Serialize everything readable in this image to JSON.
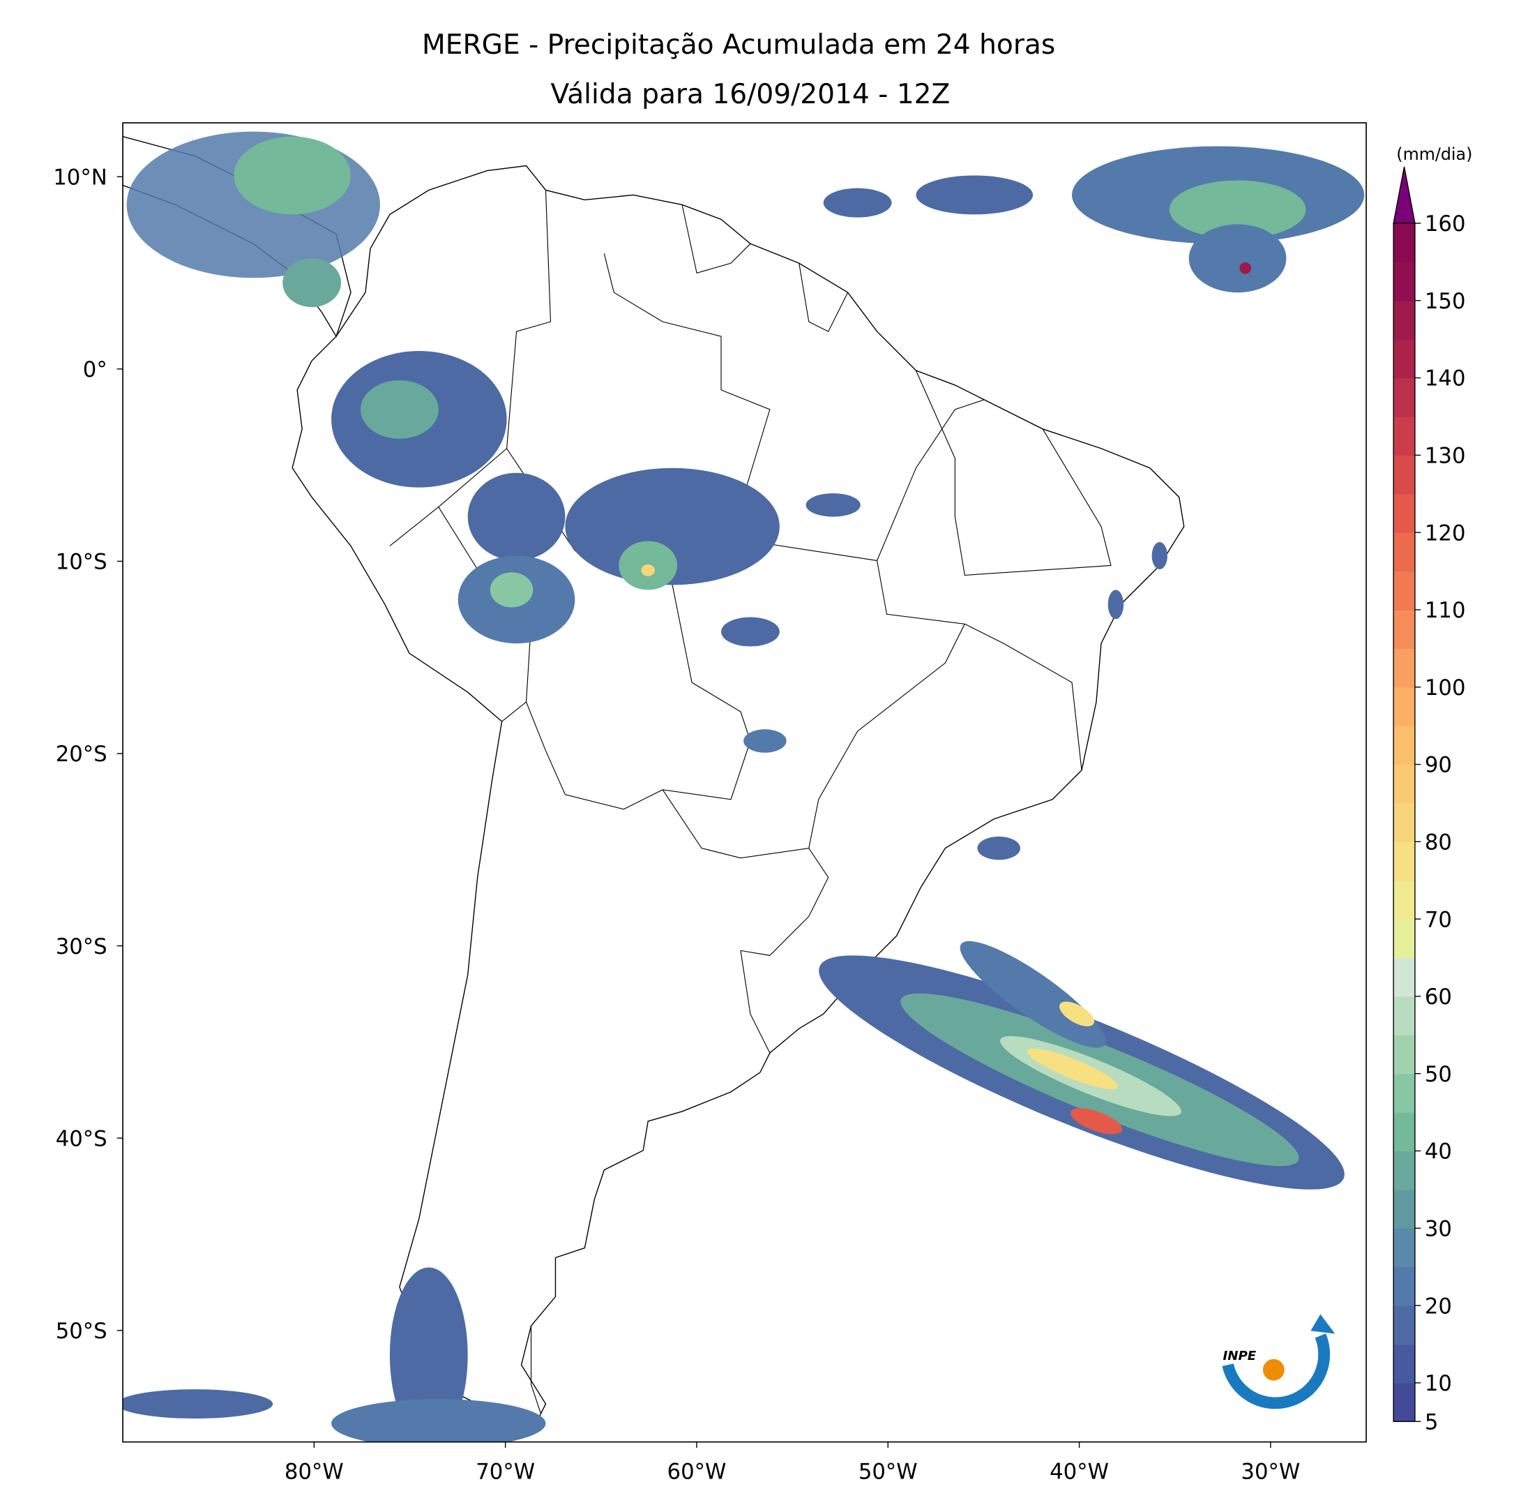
{
  "title": "MERGE - Precipitação Acumulada em 24 horas",
  "subtitle": "Válida para 16/09/2014 - 12Z",
  "map": {
    "xlim": [
      -90,
      -25
    ],
    "ylim": [
      -55.8,
      12.8
    ],
    "xticks": [
      {
        "value": -80,
        "label": "80°W"
      },
      {
        "value": -70,
        "label": "70°W"
      },
      {
        "value": -60,
        "label": "60°W"
      },
      {
        "value": -50,
        "label": "50°W"
      },
      {
        "value": -40,
        "label": "40°W"
      },
      {
        "value": -30,
        "label": "30°W"
      }
    ],
    "yticks": [
      {
        "value": 10,
        "label": "10°N"
      },
      {
        "value": 0,
        "label": "0°"
      },
      {
        "value": -10,
        "label": "10°S"
      },
      {
        "value": -20,
        "label": "20°S"
      },
      {
        "value": -30,
        "label": "30°S"
      },
      {
        "value": -40,
        "label": "40°S"
      },
      {
        "value": -50,
        "label": "50°S"
      }
    ]
  },
  "colorbar": {
    "unit": "(mm/dia)",
    "range": [
      5,
      160
    ],
    "ticks": [
      5,
      10,
      20,
      30,
      40,
      50,
      60,
      70,
      80,
      90,
      100,
      110,
      120,
      130,
      140,
      150,
      160
    ],
    "colors": [
      "#434b99",
      "#485a9f",
      "#4d6aa5",
      "#537aaa",
      "#5a8aaa",
      "#61999f",
      "#69a99b",
      "#74b99a",
      "#88c7a3",
      "#a0d2ae",
      "#b8dcbf",
      "#d0e6d6",
      "#e6f09a",
      "#f1ea8e",
      "#f7e082",
      "#f8d57a",
      "#f9ca72",
      "#fbbf6c",
      "#fbb066",
      "#f99f5f",
      "#f68d58",
      "#f27a52",
      "#ec6a4d",
      "#e45a4a",
      "#d84b4a",
      "#ca3e4b",
      "#bb304b",
      "#ab234b",
      "#9e1a4d",
      "#920f4f",
      "#8a0a50"
    ],
    "extend_color": "#7a0177"
  },
  "logo": {
    "text": "INPE"
  }
}
